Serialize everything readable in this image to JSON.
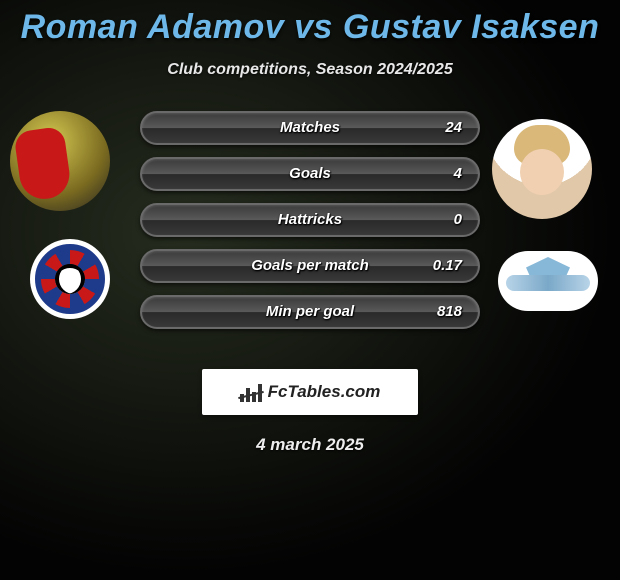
{
  "title": "Roman Adamov vs Gustav Isaksen",
  "subtitle": "Club competitions, Season 2024/2025",
  "date": "4 march 2025",
  "brand": "FcTables.com",
  "colors": {
    "title": "#6db8e8",
    "background": "#1a1a1a",
    "bar_fill": "#444444",
    "bar_border": "#6a6a6a",
    "text": "#ffffff"
  },
  "stats": [
    {
      "label": "Matches",
      "value": "24"
    },
    {
      "label": "Goals",
      "value": "4"
    },
    {
      "label": "Hattricks",
      "value": "0"
    },
    {
      "label": "Goals per match",
      "value": "0.17"
    },
    {
      "label": "Min per goal",
      "value": "818"
    }
  ],
  "players": {
    "left": {
      "name": "Roman Adamov",
      "club": "FC Viktoria Plzeň"
    },
    "right": {
      "name": "Gustav Isaksen",
      "club": "S.S. Lazio"
    }
  }
}
